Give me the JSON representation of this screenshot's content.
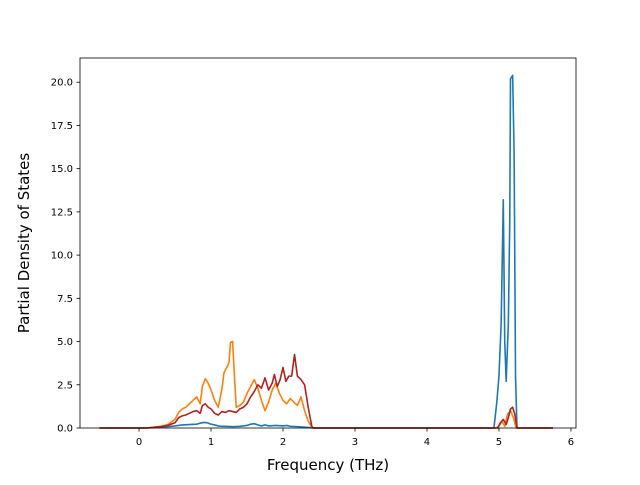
{
  "chart_data": {
    "type": "line",
    "title": "",
    "xlabel": "Frequency (THz)",
    "ylabel": "Partial Density of States",
    "xlim": [
      -0.82,
      6.07
    ],
    "ylim": [
      0,
      21.4
    ],
    "xticks": [
      0,
      1,
      2,
      3,
      4,
      5,
      6
    ],
    "xtick_labels": [
      "0",
      "1",
      "2",
      "3",
      "4",
      "5",
      "6"
    ],
    "yticks": [
      0.0,
      2.5,
      5.0,
      7.5,
      10.0,
      12.5,
      15.0,
      17.5,
      20.0
    ],
    "ytick_labels": [
      "0.0",
      "2.5",
      "5.0",
      "7.5",
      "10.0",
      "12.5",
      "15.0",
      "17.5",
      "20.0"
    ],
    "grid": false,
    "legend": "none",
    "series": [
      {
        "color": "#1f77b4",
        "points": [
          [
            -0.55,
            0
          ],
          [
            0.1,
            0
          ],
          [
            0.2,
            0.02
          ],
          [
            0.3,
            0.05
          ],
          [
            0.4,
            0.08
          ],
          [
            0.5,
            0.12
          ],
          [
            0.55,
            0.15
          ],
          [
            0.6,
            0.18
          ],
          [
            0.7,
            0.2
          ],
          [
            0.8,
            0.22
          ],
          [
            0.85,
            0.28
          ],
          [
            0.9,
            0.32
          ],
          [
            0.95,
            0.3
          ],
          [
            1.0,
            0.22
          ],
          [
            1.05,
            0.18
          ],
          [
            1.1,
            0.12
          ],
          [
            1.15,
            0.1
          ],
          [
            1.2,
            0.1
          ],
          [
            1.3,
            0.08
          ],
          [
            1.4,
            0.1
          ],
          [
            1.5,
            0.15
          ],
          [
            1.55,
            0.22
          ],
          [
            1.6,
            0.25
          ],
          [
            1.65,
            0.18
          ],
          [
            1.7,
            0.12
          ],
          [
            1.75,
            0.18
          ],
          [
            1.8,
            0.12
          ],
          [
            1.9,
            0.15
          ],
          [
            2.0,
            0.12
          ],
          [
            2.05,
            0.15
          ],
          [
            2.1,
            0.1
          ],
          [
            2.2,
            0.08
          ],
          [
            2.3,
            0.05
          ],
          [
            2.38,
            0.02
          ],
          [
            2.42,
            0
          ],
          [
            4.93,
            0
          ],
          [
            4.97,
            1.5
          ],
          [
            5.0,
            3.0
          ],
          [
            5.03,
            6.0
          ],
          [
            5.06,
            13.2
          ],
          [
            5.08,
            5.0
          ],
          [
            5.1,
            2.7
          ],
          [
            5.13,
            6.0
          ],
          [
            5.15,
            12.0
          ],
          [
            5.16,
            20.2
          ],
          [
            5.19,
            20.4
          ],
          [
            5.21,
            16.0
          ],
          [
            5.23,
            3.0
          ],
          [
            5.25,
            0
          ],
          [
            5.75,
            0
          ]
        ]
      },
      {
        "color": "#ff7f0e",
        "points": [
          [
            -0.55,
            0
          ],
          [
            0.1,
            0
          ],
          [
            0.2,
            0.05
          ],
          [
            0.3,
            0.1
          ],
          [
            0.4,
            0.2
          ],
          [
            0.45,
            0.35
          ],
          [
            0.5,
            0.5
          ],
          [
            0.55,
            0.9
          ],
          [
            0.6,
            1.1
          ],
          [
            0.65,
            1.2
          ],
          [
            0.7,
            1.4
          ],
          [
            0.75,
            1.6
          ],
          [
            0.8,
            1.8
          ],
          [
            0.85,
            1.4
          ],
          [
            0.88,
            2.4
          ],
          [
            0.92,
            2.85
          ],
          [
            0.96,
            2.6
          ],
          [
            1.0,
            2.2
          ],
          [
            1.05,
            1.6
          ],
          [
            1.1,
            1.2
          ],
          [
            1.15,
            2.2
          ],
          [
            1.18,
            3.2
          ],
          [
            1.22,
            3.5
          ],
          [
            1.25,
            3.8
          ],
          [
            1.27,
            4.95
          ],
          [
            1.3,
            5.0
          ],
          [
            1.32,
            3.4
          ],
          [
            1.35,
            1.2
          ],
          [
            1.4,
            1.3
          ],
          [
            1.45,
            1.5
          ],
          [
            1.5,
            2.0
          ],
          [
            1.55,
            2.4
          ],
          [
            1.6,
            2.8
          ],
          [
            1.65,
            2.3
          ],
          [
            1.7,
            1.6
          ],
          [
            1.75,
            1.0
          ],
          [
            1.8,
            1.5
          ],
          [
            1.85,
            2.2
          ],
          [
            1.9,
            2.6
          ],
          [
            1.95,
            2.0
          ],
          [
            2.0,
            1.6
          ],
          [
            2.05,
            1.4
          ],
          [
            2.1,
            1.7
          ],
          [
            2.15,
            1.5
          ],
          [
            2.2,
            1.3
          ],
          [
            2.25,
            1.8
          ],
          [
            2.3,
            1.0
          ],
          [
            2.35,
            0.4
          ],
          [
            2.4,
            0.05
          ],
          [
            2.42,
            0
          ],
          [
            4.96,
            0
          ],
          [
            5.0,
            0.1
          ],
          [
            5.04,
            0.4
          ],
          [
            5.08,
            0.1
          ],
          [
            5.12,
            0.8
          ],
          [
            5.16,
            1.0
          ],
          [
            5.2,
            0.6
          ],
          [
            5.24,
            0
          ],
          [
            5.75,
            0
          ]
        ]
      },
      {
        "color": "#b22222",
        "points": [
          [
            -0.55,
            0
          ],
          [
            0.1,
            0
          ],
          [
            0.2,
            0.03
          ],
          [
            0.3,
            0.08
          ],
          [
            0.4,
            0.15
          ],
          [
            0.5,
            0.3
          ],
          [
            0.55,
            0.6
          ],
          [
            0.6,
            0.7
          ],
          [
            0.65,
            0.75
          ],
          [
            0.7,
            0.85
          ],
          [
            0.75,
            0.95
          ],
          [
            0.8,
            1.0
          ],
          [
            0.85,
            0.85
          ],
          [
            0.88,
            1.3
          ],
          [
            0.92,
            1.4
          ],
          [
            0.96,
            1.2
          ],
          [
            1.0,
            1.1
          ],
          [
            1.05,
            0.85
          ],
          [
            1.1,
            0.75
          ],
          [
            1.15,
            0.95
          ],
          [
            1.2,
            0.9
          ],
          [
            1.25,
            1.0
          ],
          [
            1.3,
            0.95
          ],
          [
            1.35,
            0.9
          ],
          [
            1.4,
            1.1
          ],
          [
            1.45,
            1.2
          ],
          [
            1.5,
            1.4
          ],
          [
            1.55,
            1.8
          ],
          [
            1.6,
            2.1
          ],
          [
            1.65,
            2.5
          ],
          [
            1.7,
            2.3
          ],
          [
            1.75,
            2.9
          ],
          [
            1.8,
            2.2
          ],
          [
            1.85,
            2.6
          ],
          [
            1.88,
            3.1
          ],
          [
            1.92,
            2.4
          ],
          [
            1.96,
            2.8
          ],
          [
            2.0,
            3.5
          ],
          [
            2.04,
            2.7
          ],
          [
            2.08,
            3.0
          ],
          [
            2.12,
            3.0
          ],
          [
            2.16,
            4.25
          ],
          [
            2.2,
            3.0
          ],
          [
            2.25,
            2.8
          ],
          [
            2.3,
            2.5
          ],
          [
            2.35,
            1.2
          ],
          [
            2.4,
            0.1
          ],
          [
            2.42,
            0
          ],
          [
            4.98,
            0
          ],
          [
            5.02,
            0.3
          ],
          [
            5.06,
            0.5
          ],
          [
            5.1,
            0.2
          ],
          [
            5.13,
            0.6
          ],
          [
            5.16,
            1.1
          ],
          [
            5.19,
            1.2
          ],
          [
            5.22,
            0.8
          ],
          [
            5.25,
            0
          ],
          [
            5.75,
            0
          ]
        ]
      }
    ]
  }
}
